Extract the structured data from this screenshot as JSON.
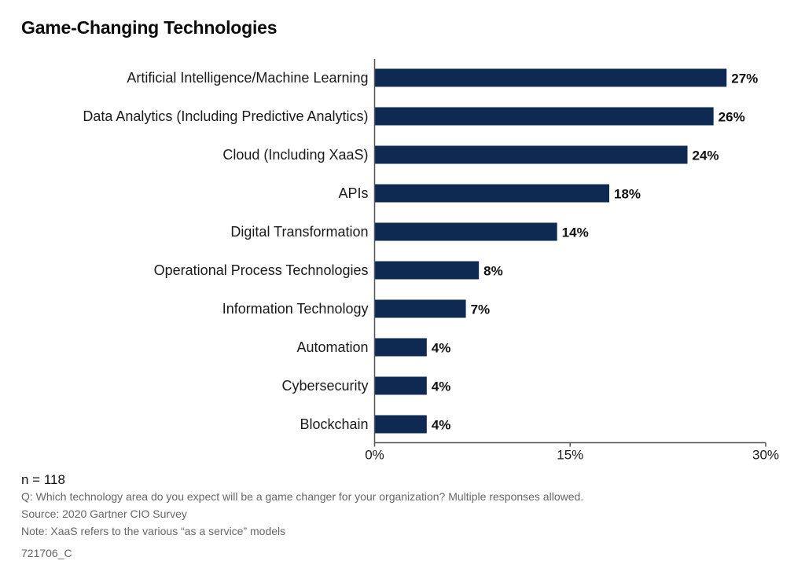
{
  "chart_data": {
    "type": "bar",
    "orientation": "horizontal",
    "title": "Game-Changing Technologies",
    "categories": [
      "Artificial Intelligence/Machine Learning",
      "Data Analytics (Including Predictive Analytics)",
      "Cloud (Including XaaS)",
      "APIs",
      "Digital Transformation",
      "Operational Process Technologies",
      "Information Technology",
      "Automation",
      "Cybersecurity",
      "Blockchain"
    ],
    "values": [
      27,
      26,
      24,
      18,
      14,
      8,
      7,
      4,
      4,
      4
    ],
    "value_labels": [
      "27%",
      "26%",
      "24%",
      "18%",
      "14%",
      "8%",
      "7%",
      "4%",
      "4%",
      "4%"
    ],
    "xlim": [
      0,
      30
    ],
    "xticks": [
      0,
      15,
      30
    ],
    "xtick_labels": [
      "0%",
      "15%",
      "30%"
    ],
    "grid": false,
    "bar_color": "#0e2a52"
  },
  "footer": {
    "n": "n = 118",
    "question": "Q: Which technology area do you expect will be a game changer for your organization? Multiple responses allowed.",
    "source": "Source: 2020 Gartner CIO Survey",
    "note": "Note: XaaS refers to the various “as a service” models",
    "code": "721706_C"
  }
}
